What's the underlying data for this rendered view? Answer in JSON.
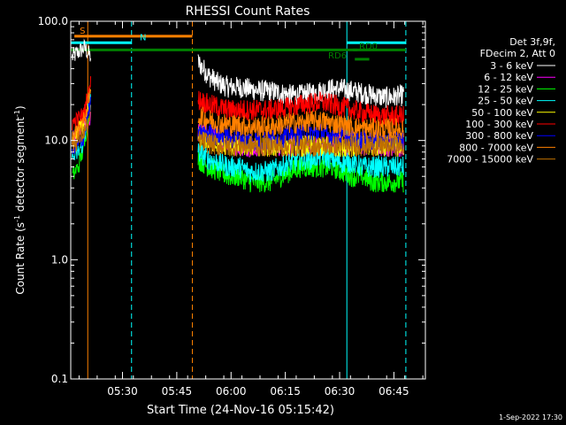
{
  "chart_data": {
    "type": "line",
    "title": "RHESSI Count Rates",
    "xlabel": "Start Time (24-Nov-16 05:15:42)",
    "ylabel": "Count Rate (s",
    "ylabel_sup": "-1",
    "ylabel_mid": " detector segment",
    "ylabel_sup2": "-1",
    "ylabel_end": ")",
    "y_scale": "log",
    "ylim": [
      0.1,
      100
    ],
    "xlim_minutes": [
      0,
      98
    ],
    "y_ticks": [
      {
        "v": 0.1,
        "label": "0.1"
      },
      {
        "v": 1,
        "label": "1.0"
      },
      {
        "v": 10,
        "label": "10.0"
      },
      {
        "v": 100,
        "label": "100.0"
      }
    ],
    "x_ticks": [
      {
        "m": 14.3,
        "label": "05:30"
      },
      {
        "m": 29.3,
        "label": "05:45"
      },
      {
        "m": 44.3,
        "label": "06:00"
      },
      {
        "m": 59.3,
        "label": "06:15"
      },
      {
        "m": 74.3,
        "label": "06:30"
      },
      {
        "m": 89.3,
        "label": "06:45"
      }
    ],
    "legend_header": [
      "Det 3f,9f,",
      "FDecim 2, Att 0"
    ],
    "legend_placement": "right",
    "series": [
      {
        "name": "3 - 6 keV",
        "color": "#ffffff",
        "early": [
          50,
          55,
          60,
          50
        ],
        "late": [
          45,
          35,
          30,
          28,
          28,
          27,
          26,
          26,
          25,
          24,
          24,
          25,
          26,
          27,
          27,
          26,
          25,
          24,
          23,
          23,
          24
        ]
      },
      {
        "name": "6 - 12 keV",
        "color": "#ff00ff",
        "early": [
          10,
          12,
          14,
          15
        ],
        "late": [
          12,
          11,
          10,
          9.5,
          9,
          9,
          9,
          9,
          9,
          9,
          9,
          9,
          9,
          9.5,
          9.5,
          9,
          9,
          9,
          9,
          9,
          9
        ]
      },
      {
        "name": "12 - 25 keV",
        "color": "#00ff00",
        "early": [
          5,
          6,
          9,
          20
        ],
        "late": [
          7,
          6,
          5.5,
          5,
          5,
          4.5,
          4.5,
          4.5,
          5,
          5.5,
          6,
          6,
          6,
          6,
          5.5,
          5,
          5,
          4.5,
          4.5,
          4.5,
          4.5
        ]
      },
      {
        "name": "25 - 50 keV",
        "color": "#00ffff",
        "early": [
          7,
          8,
          10,
          25
        ],
        "late": [
          8,
          7,
          6.5,
          6,
          6,
          5.5,
          5.5,
          5.5,
          6,
          6.5,
          7,
          7,
          7.5,
          7,
          6.5,
          6.5,
          6,
          6,
          6,
          6,
          6
        ]
      },
      {
        "name": "50 - 100 keV",
        "color": "#ffff00",
        "early": [
          10,
          12,
          14,
          18
        ],
        "late": [
          11,
          10,
          9.5,
          9,
          9,
          9,
          9,
          9,
          9,
          9,
          9,
          9,
          9,
          9,
          9,
          9,
          9,
          9,
          9,
          9,
          9
        ]
      },
      {
        "name": "100 - 300 keV",
        "color": "#ff0000",
        "early": [
          14,
          15,
          17,
          30
        ],
        "late": [
          22,
          20,
          19,
          18,
          18,
          18,
          18,
          18,
          18.5,
          19,
          20,
          20.5,
          21,
          20,
          19,
          18,
          17,
          16.5,
          16,
          16,
          16
        ]
      },
      {
        "name": "300 - 800 keV",
        "color": "#0000ff",
        "early": [
          8,
          9,
          11,
          20
        ],
        "late": [
          12,
          11.5,
          11,
          10.5,
          10.5,
          10,
          10,
          10,
          10.5,
          11,
          11,
          11.5,
          11.5,
          11,
          10.5,
          10,
          10,
          10,
          10,
          10,
          10
        ]
      },
      {
        "name": "800 - 7000 keV",
        "color": "#ff8000",
        "early": [
          11,
          12,
          15,
          25
        ],
        "late": [
          16,
          15,
          14,
          13.5,
          13.5,
          13,
          13,
          13,
          13.5,
          14,
          14,
          14.5,
          14.5,
          14,
          13.5,
          13,
          12.5,
          12.5,
          12.5,
          12.5,
          12.5
        ]
      },
      {
        "name": "7000 - 15000 keV",
        "color": "#c07000",
        "early": [
          9,
          10,
          12,
          15
        ],
        "late": [
          10,
          9.5,
          9,
          9,
          9,
          9,
          9,
          9,
          9,
          9,
          9,
          9,
          9,
          9,
          9,
          9,
          9,
          9,
          9,
          9,
          9
        ]
      }
    ],
    "markers": [
      {
        "type": "vline",
        "m": 0,
        "color": "#00ffff",
        "dash": false
      },
      {
        "type": "vline",
        "m": 4.7,
        "color": "#ff8000",
        "dash": false
      },
      {
        "type": "vline",
        "m": 16.8,
        "color": "#00ffff",
        "dash": true
      },
      {
        "type": "vline",
        "m": 33.6,
        "color": "#ff8000",
        "dash": true
      },
      {
        "type": "vline",
        "m": 76.3,
        "color": "#00ffff",
        "dash": false
      },
      {
        "type": "vline",
        "m": 92.6,
        "color": "#00ffff",
        "dash": true
      }
    ],
    "bars": [
      {
        "label": "S",
        "color": "#ff8000",
        "m0": 1,
        "m1": 33.6,
        "y": 75
      },
      {
        "label": "N",
        "color": "#00ffff",
        "m0": 0,
        "m1": 16.8,
        "y": 66
      },
      {
        "label": "",
        "color": "#00ffff",
        "m0": 76.3,
        "m1": 92.6,
        "y": 66
      },
      {
        "label": "",
        "color": "#008000",
        "m0": 0,
        "m1": 92.6,
        "y": 57.5
      },
      {
        "label": "RD0",
        "color": "#008000",
        "m0": 78,
        "m1": 79.2,
        "y": 57.5
      },
      {
        "label": "RD6",
        "color": "#008000",
        "m0": 78.5,
        "m1": 82.5,
        "y": 48
      }
    ],
    "footer_timestamp": "1-Sep-2022 17:30"
  }
}
